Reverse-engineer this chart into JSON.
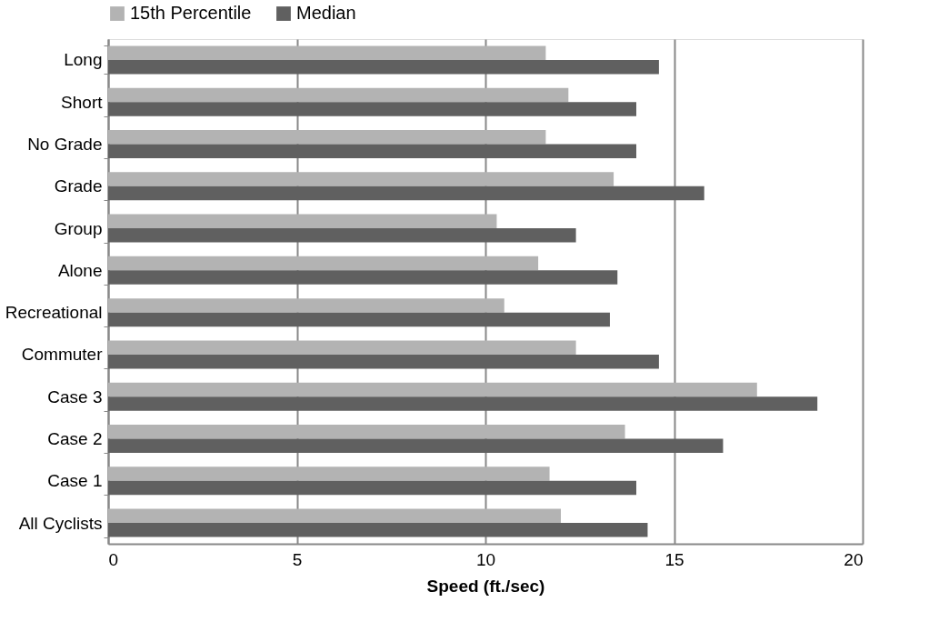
{
  "chart_data": {
    "type": "bar",
    "orientation": "horizontal",
    "xlabel": "Speed (ft./sec)",
    "categories": [
      "Long",
      "Short",
      "No Grade",
      "Grade",
      "Group",
      "Alone",
      "Recreational",
      "Commuter",
      "Case 3",
      "Case 2",
      "Case 1",
      "All Cyclists"
    ],
    "series": [
      {
        "name": "15th Percentile",
        "color": "#b3b3b3",
        "values": [
          11.6,
          12.2,
          11.6,
          13.4,
          10.3,
          11.4,
          10.5,
          12.4,
          17.2,
          13.7,
          11.7,
          12.0
        ]
      },
      {
        "name": "Median",
        "color": "#606060",
        "values": [
          14.6,
          14.0,
          14.0,
          15.8,
          12.4,
          13.5,
          13.3,
          14.6,
          18.8,
          16.3,
          14.0,
          14.3
        ]
      }
    ],
    "xlim": [
      0,
      20
    ],
    "xticks": [
      0,
      5,
      10,
      15,
      20
    ],
    "grid": "x",
    "legend": "top"
  }
}
